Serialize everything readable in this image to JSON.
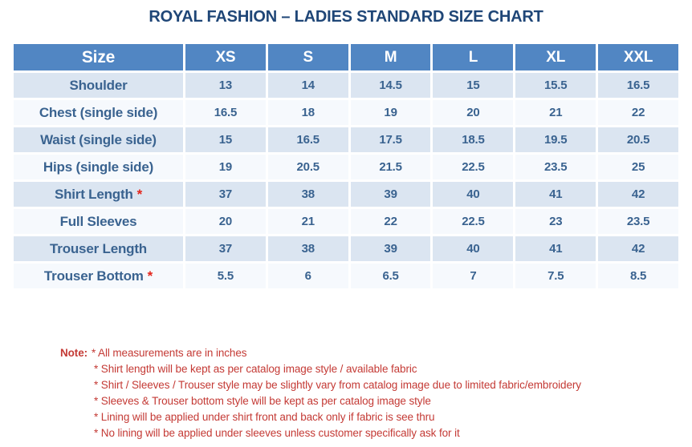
{
  "title": "ROYAL FASHION – LADIES STANDARD SIZE CHART",
  "table": {
    "columns": [
      "Size",
      "XS",
      "S",
      "M",
      "L",
      "XL",
      "XXL"
    ],
    "rows": [
      {
        "label": "Shoulder",
        "starred": false,
        "values": [
          "13",
          "14",
          "14.5",
          "15",
          "15.5",
          "16.5"
        ]
      },
      {
        "label": "Chest (single side)",
        "starred": false,
        "values": [
          "16.5",
          "18",
          "19",
          "20",
          "21",
          "22"
        ]
      },
      {
        "label": "Waist (single side)",
        "starred": false,
        "values": [
          "15",
          "16.5",
          "17.5",
          "18.5",
          "19.5",
          "20.5"
        ]
      },
      {
        "label": "Hips (single side)",
        "starred": false,
        "values": [
          "19",
          "20.5",
          "21.5",
          "22.5",
          "23.5",
          "25"
        ]
      },
      {
        "label": "Shirt Length",
        "starred": true,
        "values": [
          "37",
          "38",
          "39",
          "40",
          "41",
          "42"
        ]
      },
      {
        "label": "Full Sleeves",
        "starred": false,
        "values": [
          "20",
          "21",
          "22",
          "22.5",
          "23",
          "23.5"
        ]
      },
      {
        "label": "Trouser Length",
        "starred": false,
        "values": [
          "37",
          "38",
          "39",
          "40",
          "41",
          "42"
        ]
      },
      {
        "label": "Trouser Bottom",
        "starred": true,
        "values": [
          "5.5",
          "6",
          "6.5",
          "7",
          "7.5",
          "8.5"
        ]
      }
    ],
    "asterisk_symbol": "*"
  },
  "notes": {
    "label": "Note:",
    "items": [
      "* All measurements are in inches",
      "* Shirt length will be kept as per catalog image style / available fabric",
      "* Shirt / Sleeves / Trouser style may be slightly vary from catalog image due to limited fabric/embroidery",
      "* Sleeves & Trouser bottom style will be kept as per catalog image style",
      "* Lining will be applied under shirt front and back only if fabric is see thru",
      "* No lining will be applied under sleeves unless customer specifically ask for it"
    ]
  },
  "colors": {
    "header_bg": "#5186C3",
    "row_alt_bg": "#DBE5F1",
    "row_bg": "#F6F9FD",
    "cell_text": "#3A6390",
    "title_text": "#1F4677",
    "note_text": "#C43A35",
    "asterisk": "#E4251B",
    "header_text": "#FFFFFF"
  }
}
